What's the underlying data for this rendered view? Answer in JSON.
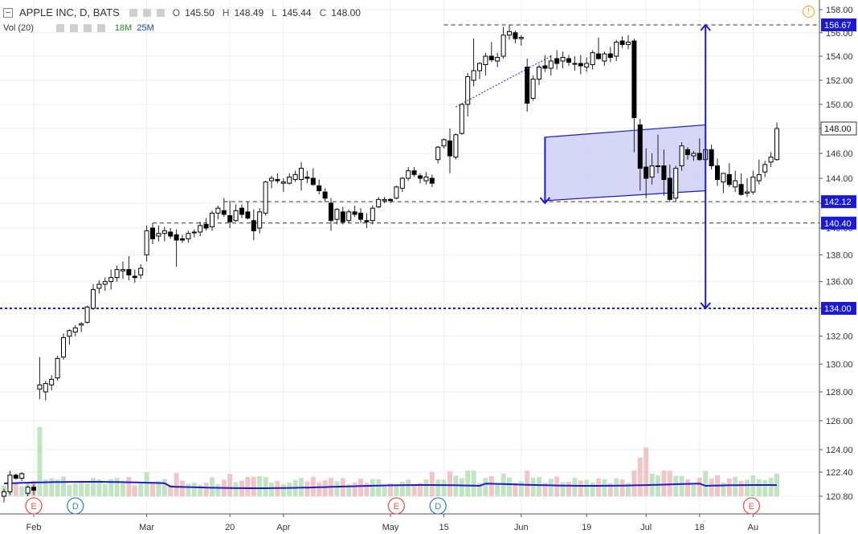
{
  "legend": {
    "symbol": "APPLE INC, D, BATS",
    "open_key": "O",
    "open": "145.50",
    "high_key": "H",
    "high": "148.49",
    "low_key": "L",
    "low": "145.44",
    "close_key": "C",
    "close": "148.00",
    "vol_label": "Vol (20)",
    "vol_ma1": "18M",
    "vol_ma2": "25M"
  },
  "colors": {
    "up": "#000000",
    "down": "#000000",
    "accent_blue": "#1a1ad6",
    "channel_fill": "#c8c8f4",
    "vol_up": "#b9dfb9",
    "vol_down": "#eebcbc",
    "vol_ma": "#1a1ad6",
    "event_earnings": "#e05555",
    "event_dividend": "#2f86c6"
  },
  "chart_data": {
    "type": "candlestick",
    "symbol": "APPLE INC",
    "interval": "D",
    "exchange": "BATS",
    "ylim": [
      120.0,
      158.4
    ],
    "y_ticks": [
      "120.80",
      "122.40",
      "124.00",
      "126.00",
      "128.00",
      "130.00",
      "132.00",
      "134.00",
      "136.00",
      "138.00",
      "140.00",
      "142.00",
      "144.00",
      "146.00",
      "148.00",
      "150.00",
      "152.00",
      "154.00",
      "156.00",
      "158.00"
    ],
    "x_ticks": [
      {
        "index": 5,
        "label": "Feb"
      },
      {
        "index": 24,
        "label": "Mar"
      },
      {
        "index": 38,
        "label": "20"
      },
      {
        "index": 47,
        "label": "Apr"
      },
      {
        "index": 65,
        "label": "May"
      },
      {
        "index": 74,
        "label": "15"
      },
      {
        "index": 87,
        "label": "Jun"
      },
      {
        "index": 98,
        "label": "19"
      },
      {
        "index": 108,
        "label": "Jul"
      },
      {
        "index": 117,
        "label": "18"
      },
      {
        "index": 126,
        "label": "Au"
      }
    ],
    "price_labels": [
      "156.67",
      "148.00",
      "142.12",
      "140.40",
      "134.00"
    ],
    "events": [
      {
        "index": 5,
        "letter": "E",
        "kind": "earnings"
      },
      {
        "index": 12,
        "letter": "D",
        "kind": "dividend"
      },
      {
        "index": 66,
        "letter": "E",
        "kind": "earnings"
      },
      {
        "index": 73,
        "letter": "D",
        "kind": "dividend"
      },
      {
        "index": 126,
        "letter": "E",
        "kind": "earnings"
      }
    ],
    "horizontal_lines": [
      {
        "price": 156.67,
        "from_index": 74,
        "style": "dashed"
      },
      {
        "price": 142.12,
        "from_index": 37,
        "style": "dashed"
      },
      {
        "price": 140.4,
        "from_index": 25,
        "style": "dashed"
      },
      {
        "price": 134.0,
        "from_index": 0,
        "style": "dotted-blue"
      }
    ],
    "channel": {
      "start_index": 91,
      "end_index": 118,
      "upper": [
        147.3,
        148.3
      ],
      "lower": [
        142.2,
        143.0
      ]
    },
    "measure_arrows": [
      {
        "index": 91,
        "from": 147.3,
        "to": 142.0
      },
      {
        "index": 118,
        "from": 156.67,
        "to": 134.0
      }
    ],
    "trendline": {
      "from_index": 76,
      "from": 149.8,
      "to_index": 92,
      "to": 154.0
    },
    "candles": [
      [
        120.8,
        121.3,
        120.4,
        121.1
      ],
      [
        121.1,
        122.5,
        120.9,
        122.2
      ],
      [
        122.2,
        122.3,
        121.9,
        122.0
      ],
      [
        122.0,
        122.4,
        121.8,
        122.3
      ],
      [
        121.0,
        121.5,
        120.8,
        121.4
      ],
      [
        121.4,
        121.6,
        120.9,
        121.2
      ],
      [
        128.2,
        130.5,
        127.5,
        128.5
      ],
      [
        128.0,
        128.8,
        127.4,
        128.6
      ],
      [
        128.5,
        129.2,
        128.1,
        128.9
      ],
      [
        129.0,
        130.6,
        128.8,
        130.4
      ],
      [
        130.5,
        132.2,
        130.3,
        131.9
      ],
      [
        132.0,
        132.5,
        131.4,
        132.4
      ],
      [
        132.3,
        132.8,
        132.0,
        132.6
      ],
      [
        132.8,
        133.0,
        132.3,
        132.9
      ],
      [
        133.0,
        134.2,
        132.9,
        134.1
      ],
      [
        134.0,
        135.8,
        133.9,
        135.4
      ],
      [
        135.5,
        136.1,
        135.1,
        135.8
      ],
      [
        135.8,
        136.3,
        135.3,
        136.0
      ],
      [
        136.0,
        136.9,
        135.4,
        136.3
      ],
      [
        136.3,
        137.2,
        136.0,
        136.9
      ],
      [
        136.8,
        137.5,
        136.2,
        136.9
      ],
      [
        136.9,
        137.9,
        136.1,
        136.5
      ],
      [
        136.4,
        136.9,
        135.9,
        136.3
      ],
      [
        136.5,
        137.3,
        136.2,
        137.0
      ],
      [
        138.0,
        140.2,
        137.5,
        139.8
      ],
      [
        140.0,
        140.4,
        138.8,
        139.2
      ],
      [
        139.4,
        140.2,
        139.0,
        139.6
      ],
      [
        139.6,
        140.1,
        139.0,
        139.8
      ],
      [
        139.7,
        140.0,
        139.2,
        139.4
      ],
      [
        139.5,
        139.9,
        137.1,
        139.1
      ],
      [
        139.2,
        139.5,
        138.9,
        139.1
      ],
      [
        139.2,
        139.8,
        138.9,
        139.6
      ],
      [
        139.7,
        139.9,
        139.3,
        139.7
      ],
      [
        139.7,
        140.5,
        139.4,
        140.2
      ],
      [
        140.3,
        140.8,
        139.8,
        140.0
      ],
      [
        140.1,
        141.4,
        139.8,
        141.2
      ],
      [
        141.2,
        141.8,
        140.7,
        141.6
      ],
      [
        141.4,
        142.4,
        140.9,
        141.1
      ],
      [
        141.0,
        142.2,
        140.0,
        140.5
      ],
      [
        140.6,
        141.9,
        140.5,
        141.4
      ],
      [
        141.6,
        141.9,
        140.8,
        141.1
      ],
      [
        141.3,
        142.1,
        140.7,
        140.8
      ],
      [
        140.6,
        141.5,
        139.1,
        139.8
      ],
      [
        140.0,
        141.6,
        139.6,
        141.3
      ],
      [
        141.2,
        143.8,
        141.0,
        143.7
      ],
      [
        143.8,
        144.2,
        143.2,
        144.0
      ],
      [
        143.9,
        144.4,
        143.6,
        143.8
      ],
      [
        143.6,
        144.0,
        142.9,
        143.7
      ],
      [
        143.6,
        144.4,
        143.5,
        144.1
      ],
      [
        143.9,
        144.6,
        143.7,
        144.3
      ],
      [
        143.9,
        145.3,
        143.0,
        144.8
      ],
      [
        144.1,
        144.6,
        143.6,
        144.0
      ],
      [
        144.0,
        144.8,
        143.4,
        143.5
      ],
      [
        143.4,
        143.9,
        142.7,
        143.0
      ],
      [
        142.9,
        143.2,
        142.1,
        142.4
      ],
      [
        142.0,
        142.4,
        139.8,
        140.6
      ],
      [
        140.7,
        141.6,
        140.3,
        141.5
      ],
      [
        141.3,
        141.7,
        140.3,
        140.5
      ],
      [
        140.6,
        141.5,
        140.4,
        141.3
      ],
      [
        141.3,
        141.8,
        140.9,
        141.1
      ],
      [
        141.2,
        141.6,
        140.4,
        140.7
      ],
      [
        140.6,
        141.2,
        140.0,
        140.5
      ],
      [
        140.6,
        141.8,
        140.3,
        141.6
      ],
      [
        141.7,
        142.5,
        141.6,
        142.3
      ],
      [
        142.2,
        142.5,
        142.0,
        142.3
      ],
      [
        142.3,
        142.4,
        142.0,
        142.2
      ],
      [
        142.4,
        143.4,
        142.3,
        143.3
      ],
      [
        143.2,
        144.1,
        142.9,
        144.0
      ],
      [
        144.0,
        144.9,
        143.8,
        144.6
      ],
      [
        144.6,
        144.9,
        144.1,
        144.3
      ],
      [
        144.2,
        144.4,
        143.6,
        144.0
      ],
      [
        143.8,
        144.5,
        143.5,
        144.1
      ],
      [
        144.0,
        144.3,
        143.3,
        143.6
      ],
      [
        145.5,
        146.6,
        145.2,
        146.5
      ],
      [
        146.6,
        147.2,
        146.4,
        147.1
      ],
      [
        147.0,
        148.0,
        144.4,
        145.8
      ],
      [
        145.7,
        147.6,
        145.5,
        147.5
      ],
      [
        147.6,
        150.0,
        147.5,
        150.0
      ],
      [
        150.0,
        152.6,
        149.0,
        152.3
      ],
      [
        152.0,
        155.5,
        151.5,
        152.8
      ],
      [
        152.8,
        153.5,
        152.1,
        153.4
      ],
      [
        153.3,
        154.3,
        152.4,
        154.0
      ],
      [
        154.0,
        155.2,
        153.5,
        153.7
      ],
      [
        153.6,
        154.3,
        153.1,
        153.9
      ],
      [
        154.0,
        156.5,
        153.8,
        155.8
      ],
      [
        155.8,
        156.7,
        155.4,
        156.1
      ],
      [
        156.0,
        156.2,
        155.1,
        155.5
      ],
      [
        155.5,
        155.8,
        154.9,
        155.6
      ],
      [
        153.1,
        153.8,
        149.4,
        150.1
      ],
      [
        150.5,
        152.4,
        150.3,
        152.1
      ],
      [
        152.1,
        153.3,
        151.6,
        153.1
      ],
      [
        153.2,
        154.1,
        152.7,
        153.0
      ],
      [
        153.0,
        154.1,
        152.4,
        153.6
      ],
      [
        153.8,
        154.5,
        152.9,
        153.4
      ],
      [
        153.6,
        154.4,
        153.0,
        153.9
      ],
      [
        153.8,
        154.1,
        153.2,
        153.5
      ],
      [
        153.4,
        154.0,
        152.8,
        153.4
      ],
      [
        153.4,
        154.1,
        152.5,
        153.2
      ],
      [
        153.1,
        153.9,
        152.7,
        153.4
      ],
      [
        153.3,
        154.5,
        152.9,
        154.3
      ],
      [
        154.2,
        155.6,
        153.7,
        153.8
      ],
      [
        153.6,
        154.4,
        153.2,
        154.2
      ],
      [
        154.2,
        154.8,
        153.5,
        153.9
      ],
      [
        154.0,
        155.4,
        153.6,
        155.2
      ],
      [
        155.3,
        155.7,
        154.7,
        155.0
      ],
      [
        155.0,
        155.8,
        154.6,
        155.2
      ],
      [
        155.3,
        155.5,
        146.1,
        148.9
      ],
      [
        148.3,
        148.8,
        143.0,
        144.8
      ],
      [
        144.9,
        146.4,
        142.4,
        144.0
      ],
      [
        144.1,
        146.0,
        143.5,
        145.0
      ],
      [
        145.0,
        147.5,
        144.4,
        145.0
      ],
      [
        145.0,
        146.3,
        142.6,
        143.9
      ],
      [
        144.0,
        145.1,
        142.1,
        142.3
      ],
      [
        142.4,
        145.0,
        142.1,
        144.8
      ],
      [
        145.0,
        146.9,
        144.6,
        146.6
      ],
      [
        146.3,
        146.5,
        145.5,
        145.9
      ],
      [
        145.8,
        146.2,
        145.4,
        146.0
      ],
      [
        146.0,
        147.2,
        145.4,
        145.5
      ],
      [
        145.5,
        148.0,
        145.3,
        146.3
      ],
      [
        146.3,
        146.7,
        144.7,
        145.0
      ],
      [
        145.0,
        145.6,
        143.4,
        143.9
      ],
      [
        143.7,
        144.4,
        142.8,
        144.4
      ],
      [
        144.3,
        145.2,
        143.3,
        143.5
      ],
      [
        143.3,
        144.6,
        142.9,
        143.8
      ],
      [
        143.5,
        144.4,
        142.6,
        142.7
      ],
      [
        142.8,
        144.0,
        142.5,
        142.9
      ],
      [
        142.9,
        144.6,
        142.7,
        144.1
      ],
      [
        143.8,
        145.5,
        143.5,
        144.3
      ],
      [
        144.5,
        145.4,
        144.1,
        145.1
      ],
      [
        145.3,
        146.1,
        144.9,
        145.7
      ],
      [
        145.5,
        148.5,
        145.4,
        148.0
      ]
    ],
    "volume_ma_label": "Vol (20)"
  }
}
